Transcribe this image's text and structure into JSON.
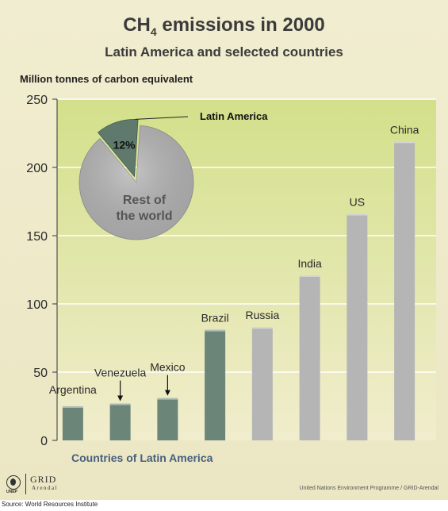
{
  "header": {
    "title_main": "CH",
    "title_sub": "4",
    "title_rest": " emissions in 2000",
    "subtitle": "Latin America and selected countries"
  },
  "axis_unit": "Million tonnes of carbon equivalent",
  "x_group_label": "Countries of Latin America",
  "footer": {
    "credit": "United Nations Environment Programme / GRID-Arendal",
    "source": "Source: World Resources Institute",
    "logo_org": "UNEP",
    "logo_grid": "GRID",
    "logo_city": "Arendal"
  },
  "colors": {
    "latin_bar": "#6b8579",
    "other_bar": "#b5b5b5",
    "plot_top": "#d3e08a",
    "plot_bottom": "#f1edcd",
    "pie_rest": "#b3b3b3",
    "pie_latin": "#5f7a6c"
  },
  "chart_data": [
    {
      "type": "bar",
      "title": "CH4 emissions in 2000",
      "subtitle": "Latin America and selected countries",
      "ylabel": "Million tonnes of carbon equivalent",
      "ylim": [
        0,
        250
      ],
      "yticks": [
        0,
        50,
        100,
        150,
        200,
        250
      ],
      "grid": "horizontal",
      "categories": [
        "Argentina",
        "Venezuela",
        "Mexico",
        "Brazil",
        "Russia",
        "India",
        "US",
        "China"
      ],
      "values": [
        25,
        27,
        31,
        81,
        83,
        121,
        166,
        219
      ],
      "groups": [
        "latin",
        "latin",
        "latin",
        "latin",
        "other",
        "other",
        "other",
        "other"
      ]
    },
    {
      "type": "pie",
      "slices": [
        {
          "label": "Latin America",
          "value": 12,
          "display": "12%"
        },
        {
          "label": "Rest of the world",
          "value": 88
        }
      ],
      "rest_label_lines": [
        "Rest of",
        "the world"
      ]
    }
  ]
}
